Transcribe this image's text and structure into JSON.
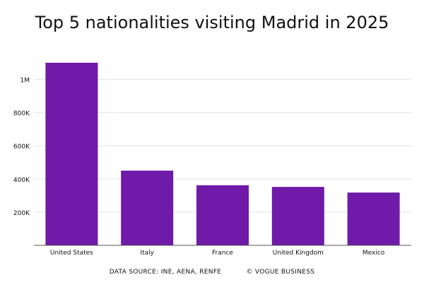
{
  "chart_data": {
    "type": "bar",
    "title": "Top 5 nationalities visiting Madrid in 2025",
    "categories": [
      "United States",
      "Italy",
      "France",
      "United Kingdom",
      "Mexico"
    ],
    "values": [
      1100000,
      450000,
      362000,
      352000,
      318000
    ],
    "yticks": [
      200000,
      400000,
      600000,
      800000,
      1000000
    ],
    "ytick_labels": [
      "200K",
      "400K",
      "600K",
      "800K",
      "1M"
    ],
    "ylim": [
      0,
      1100000
    ],
    "xlabel": "",
    "ylabel": "",
    "grid": true,
    "bar_color": "#6f1aa8"
  },
  "footer": {
    "source": "DATA SOURCE: INE, AENA, RENFE",
    "credit": "© VOGUE BUSINESS"
  }
}
